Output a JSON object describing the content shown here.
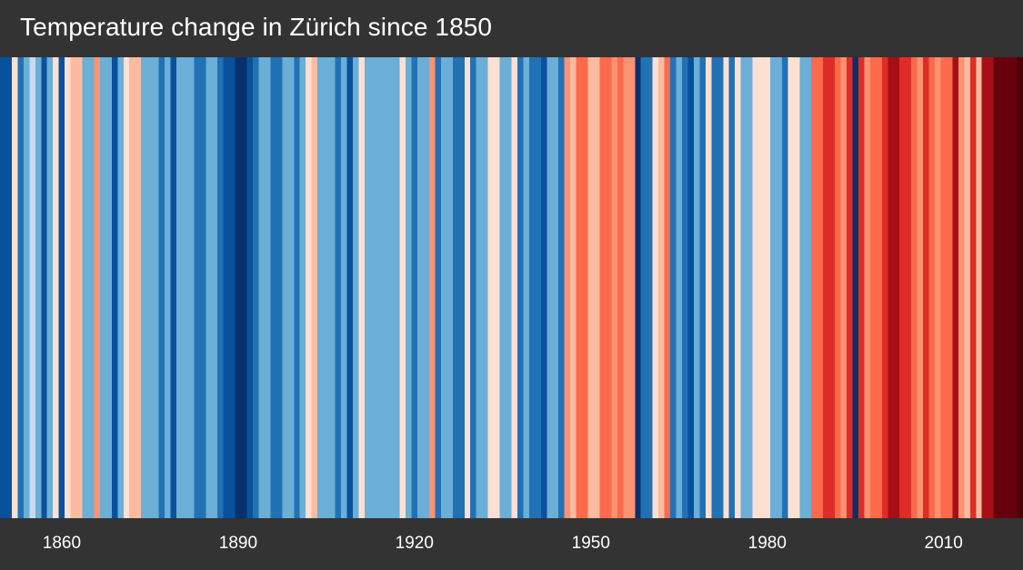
{
  "title": "Temperature change in Zürich since 1850",
  "colors": {
    "background": "#333333",
    "text": "#ffffff"
  },
  "chart_data": {
    "type": "heatmap",
    "title": "Temperature change in Zürich since 1850",
    "x_start": 1850,
    "x_end": 2023,
    "x_ticks": [
      1860,
      1890,
      1920,
      1950,
      1980,
      2010
    ],
    "grid": false,
    "legend": "none",
    "anomaly_scale": "-3 (deep blue) to +3 (deep red), relative units",
    "year_anomalies": [
      -3,
      -3,
      0.5,
      -2,
      -1,
      0,
      -1,
      -3,
      -1,
      0.5,
      -3,
      0.5,
      1,
      1,
      -1,
      -1,
      1.5,
      -1,
      -1,
      -3,
      -1,
      0.5,
      1,
      1,
      -1,
      -1,
      -1,
      -2,
      -1,
      -3,
      -1,
      -1,
      -1,
      -2,
      -2,
      -1,
      -1,
      -2,
      -3,
      -3,
      -4,
      -4,
      -3,
      -2,
      -1,
      -1,
      -2,
      -2,
      -1,
      -1,
      -2,
      -1,
      0.5,
      1,
      -1,
      -1,
      -1,
      -2,
      -1,
      -3,
      -1,
      0.5,
      -1,
      -1,
      -1,
      -1,
      -1,
      -1,
      0.5,
      -1,
      -2,
      -1,
      -1,
      1.5,
      -2,
      -1,
      -1,
      -2,
      -2,
      0.5,
      -2,
      -1,
      -1,
      0.5,
      0.5,
      -1,
      -1,
      0.5,
      -2,
      -1,
      -2,
      -2,
      -3,
      -1,
      -1,
      -2,
      1.5,
      1,
      2,
      2,
      1,
      1,
      2,
      2,
      1.5,
      2,
      1.5,
      1.5,
      -4,
      -2,
      -2,
      0.5,
      1,
      2,
      -2,
      -1,
      -2,
      -3,
      -1,
      -2,
      0.5,
      -2,
      -2,
      0.5,
      -2,
      0.5,
      -1,
      -1,
      0.5,
      0.5,
      0.5,
      -1,
      -1,
      -2,
      0.5,
      0.5,
      -1,
      -1,
      2,
      2,
      2.5,
      2.5,
      2,
      1.5,
      2.5,
      -4,
      2.5,
      1.5,
      2,
      2,
      2.5,
      3,
      3,
      2.5,
      2.5,
      2,
      1.5,
      2.5,
      2,
      1.5,
      2,
      2,
      3,
      1.5,
      1,
      2.5,
      1,
      3,
      3,
      3.5,
      3.5,
      3.5,
      3.5,
      4
    ]
  }
}
